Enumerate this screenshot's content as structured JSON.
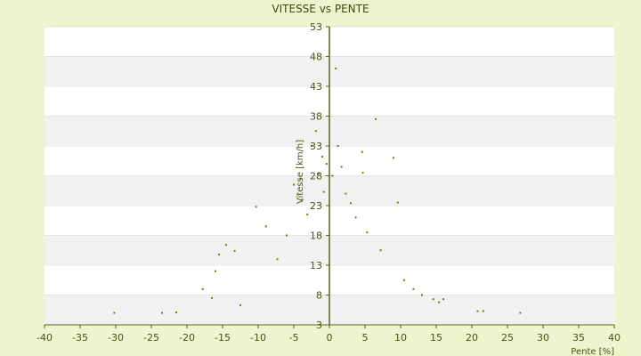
{
  "chart_data": {
    "type": "scatter",
    "title": "VITESSE vs PENTE",
    "xlabel": "Pente [%]",
    "ylabel": "Vitesse [km/h]",
    "xlim": [
      -40,
      40
    ],
    "ylim": [
      3,
      53
    ],
    "xticks": [
      "-40",
      "-35",
      "-30",
      "-25",
      "-20",
      "-15",
      "-10",
      "-5",
      "0",
      "5",
      "10",
      "15",
      "20",
      "25",
      "30",
      "35",
      "40"
    ],
    "yticks": [
      "3",
      "8",
      "13",
      "18",
      "23",
      "28",
      "33",
      "38",
      "43",
      "48",
      "53"
    ],
    "grid": "horizontal bands",
    "colors": {
      "point": "#6f7a12",
      "band": "#f1f1f1",
      "plot_bg": "#ffffff",
      "page_bg": "#eef4cd",
      "axis": "#5a6414"
    },
    "series": [
      {
        "points": [
          [
            -30.2,
            5.0
          ],
          [
            -23.5,
            5.0
          ],
          [
            -21.5,
            5.1
          ],
          [
            -17.8,
            9.0
          ],
          [
            -16.5,
            7.5
          ],
          [
            -16.0,
            12.0
          ],
          [
            -15.5,
            14.8
          ],
          [
            -14.5,
            16.4
          ],
          [
            -13.3,
            15.4
          ],
          [
            -12.5,
            6.3
          ],
          [
            -10.3,
            22.8
          ],
          [
            -8.9,
            19.5
          ],
          [
            -7.3,
            14.0
          ],
          [
            -6.0,
            18.0
          ],
          [
            -5.0,
            26.5
          ],
          [
            -4.1,
            27.5
          ],
          [
            -3.8,
            24.0
          ],
          [
            -3.1,
            21.5
          ],
          [
            -2.5,
            33.0
          ],
          [
            -1.9,
            35.5
          ],
          [
            -1.5,
            28.4
          ],
          [
            -1.0,
            31.2
          ],
          [
            -0.8,
            25.3
          ],
          [
            -0.4,
            30.0
          ],
          [
            0.4,
            28.0
          ],
          [
            0.9,
            46.0
          ],
          [
            1.2,
            33.0
          ],
          [
            1.7,
            29.5
          ],
          [
            2.3,
            25.0
          ],
          [
            3.0,
            23.4
          ],
          [
            3.7,
            21.0
          ],
          [
            4.6,
            32.0
          ],
          [
            4.7,
            28.5
          ],
          [
            5.3,
            18.5
          ],
          [
            6.5,
            37.5
          ],
          [
            7.2,
            15.5
          ],
          [
            9.0,
            31.0
          ],
          [
            9.6,
            23.5
          ],
          [
            10.5,
            10.5
          ],
          [
            11.8,
            9.0
          ],
          [
            13.0,
            8.0
          ],
          [
            14.6,
            7.3
          ],
          [
            15.4,
            6.8
          ],
          [
            16.0,
            7.3
          ],
          [
            20.8,
            5.3
          ],
          [
            21.6,
            5.3
          ],
          [
            26.8,
            5.0
          ]
        ]
      }
    ]
  }
}
